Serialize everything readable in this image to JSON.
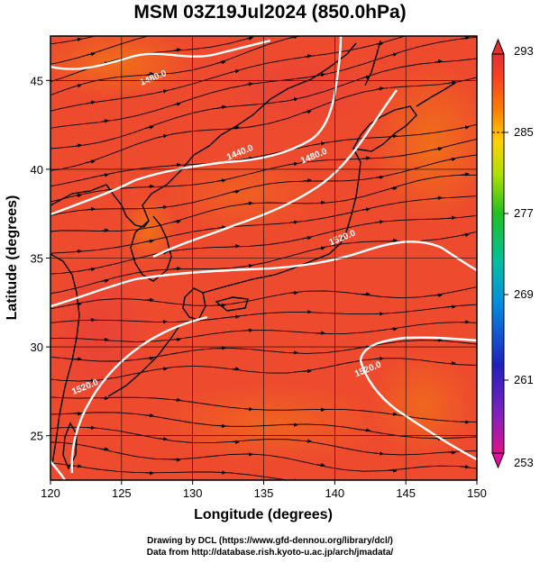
{
  "title": "MSM 03Z19Jul2024 (850.0hPa)",
  "map": {
    "xaxis": {
      "label": "Longitude (degrees)",
      "min": 120,
      "max": 150,
      "ticks": [
        "120",
        "125",
        "130",
        "135",
        "140",
        "145",
        "150"
      ]
    },
    "yaxis": {
      "label": "Latitude  (degrees)",
      "min": 22.5,
      "max": 47.5,
      "ticks": [
        "25",
        "30",
        "35",
        "40",
        "45"
      ]
    },
    "gridlines": "on",
    "background": "temperature-shading",
    "overlay": "wind-streamlines",
    "contours": [
      {
        "label": "1480.0",
        "lon": 127.3,
        "lat": 45.0
      },
      {
        "label": "1440.0",
        "lon": 133.4,
        "lat": 40.8
      },
      {
        "label": "1480.0",
        "lon": 138.6,
        "lat": 40.6
      },
      {
        "label": "1520.0",
        "lon": 140.6,
        "lat": 36.0
      },
      {
        "label": "1520.0",
        "lon": 122.5,
        "lat": 27.6
      },
      {
        "label": "1520.0",
        "lon": 142.4,
        "lat": 28.6
      }
    ]
  },
  "colorbar": {
    "max_label": "293",
    "labels": [
      "285",
      "277",
      "269",
      "261"
    ],
    "min_label": "253",
    "colors": [
      "#e0108a",
      "#2020c0",
      "#0090e0",
      "#00c0a0",
      "#20c020",
      "#b0e000",
      "#ffd000",
      "#ff8000",
      "#ff4020",
      "#e03030"
    ]
  },
  "credits": {
    "line1": "Drawing by DCL (https://www.gfd-dennou.org/library/dcl/)",
    "line2": "Data from http://database.rish.kyoto-u.ac.jp/arch/jmadata/"
  }
}
